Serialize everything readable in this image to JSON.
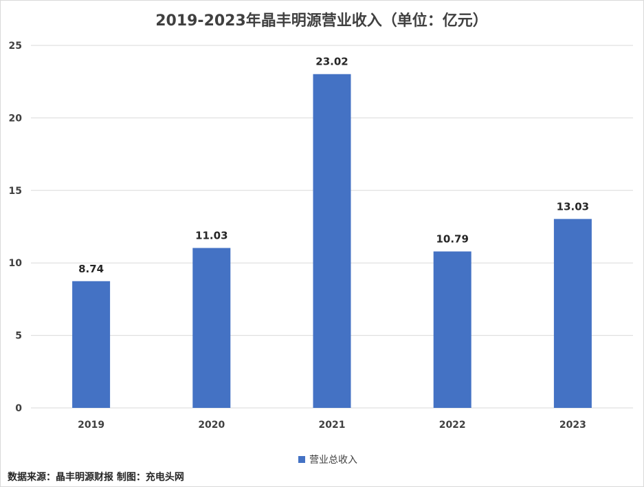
{
  "title": "2019-2023年晶丰明源营业收入（单位：亿元）",
  "source_text": "数据来源：晶丰明源财报  制图：充电头网",
  "colors": {
    "bar": "#4472c4",
    "grid": "#d9d9d9",
    "text": "#404040"
  },
  "chart_data": {
    "type": "bar",
    "title": "2019-2023年晶丰明源营业收入（单位：亿元）",
    "categories": [
      "2019",
      "2020",
      "2021",
      "2022",
      "2023"
    ],
    "series": [
      {
        "name": "营业总收入",
        "values": [
          8.74,
          11.03,
          23.02,
          10.79,
          13.03
        ]
      }
    ],
    "data_labels": [
      "8.74",
      "11.03",
      "23.02",
      "10.79",
      "13.03"
    ],
    "yticks": [
      "0",
      "5",
      "10",
      "15",
      "20",
      "25"
    ],
    "ylim": [
      0,
      25
    ],
    "xlabel": "",
    "ylabel": "",
    "grid": true,
    "legend": "bottom"
  }
}
